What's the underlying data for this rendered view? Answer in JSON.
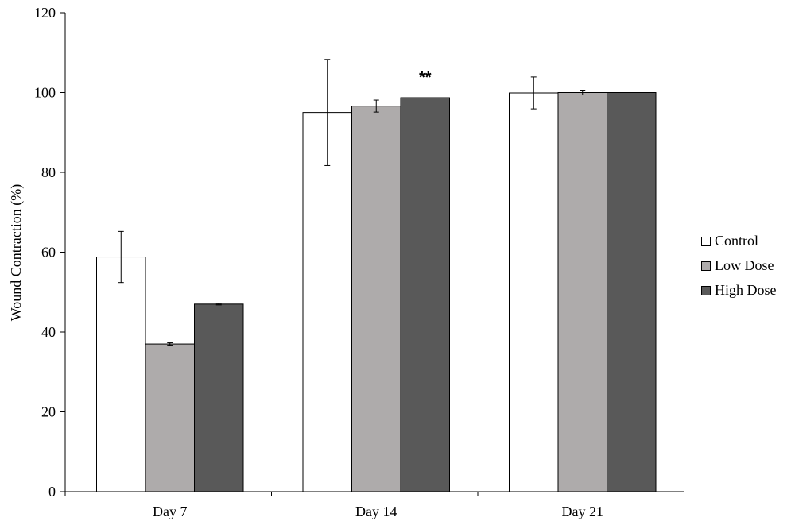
{
  "chart_data": {
    "type": "bar",
    "title": "",
    "xlabel": "",
    "ylabel": "Wound Contraction (%)",
    "ylim": [
      0,
      120
    ],
    "yticks": [
      "0",
      "20",
      "40",
      "60",
      "80",
      "100",
      "120"
    ],
    "categories": [
      "Day 7",
      "Day 14",
      "Day 21"
    ],
    "series": [
      {
        "name": "Control",
        "color": "#ffffff",
        "values": [
          58.8,
          95.0,
          99.9
        ],
        "errors": [
          6.4,
          13.3,
          4.0
        ]
      },
      {
        "name": "Low Dose",
        "color": "#aeabab",
        "values": [
          37.0,
          96.6,
          100.0
        ],
        "errors": [
          0.3,
          1.5,
          0.6
        ]
      },
      {
        "name": "High Dose",
        "color": "#595959",
        "values": [
          47.0,
          98.7,
          100.0
        ],
        "errors": [
          0.2,
          0.0,
          0.0
        ]
      }
    ],
    "annotations": [
      {
        "text": "**",
        "category": "Day 14",
        "series": "High Dose"
      }
    ],
    "grid": false,
    "legend_position": "right"
  }
}
